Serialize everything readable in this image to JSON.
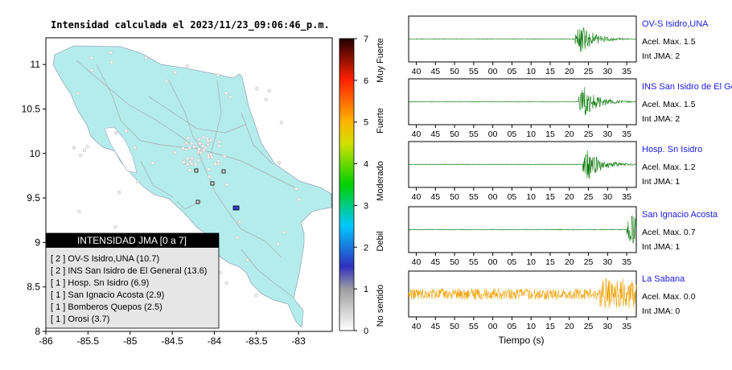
{
  "map": {
    "title": "Intensidad calculada el 2023/11/23_09:06:46_p.m.",
    "x_ticks": [
      "-86",
      "-85.5",
      "-85",
      "-84.5",
      "-84",
      "-83.5",
      "-83"
    ],
    "y_ticks": [
      "11",
      "10.5",
      "10",
      "9.5",
      "9",
      "8.5",
      "8"
    ],
    "colorbar": {
      "ticks": [
        "0",
        "1",
        "2",
        "3",
        "4",
        "5",
        "6",
        "7"
      ],
      "labels": [
        "No sentido",
        "Debil",
        "Moderado",
        "Fuerte",
        "Muy Fuerte"
      ]
    },
    "legend": {
      "header": "INTENSIDAD JMA [0 a 7]",
      "items": [
        "[ 2 ]  OV-S Isidro,UNA (10.7)",
        "[ 2 ]  INS San Isidro de El General (13.6)",
        "[ 1 ]  Hosp. Sn Isidro (6.9)",
        "[ 1 ]  San Ignacio Acosta (2.9)",
        "[ 1 ]  Bomberos Quepos (2.5)",
        "[ 1 ]  Orosi (3.7)"
      ]
    }
  },
  "traces": {
    "xlabel": "Tiempo (s)",
    "panels": [
      {
        "station": "OV-S Isidro,UNA",
        "accel": "Acel. Max. 1.5",
        "int": "Int JMA: 2",
        "ticks": [
          "40",
          "45",
          "50",
          "55",
          "00",
          "05",
          "10",
          "15",
          "20",
          "25",
          "30",
          "35"
        ],
        "onset": 21.5,
        "color": "#0b7a0b"
      },
      {
        "station": "INS San Isidro de El Ge",
        "accel": "Acel. Max. 1.5",
        "int": "Int JMA: 2",
        "ticks": [
          "40",
          "45",
          "50",
          "55",
          "00",
          "05",
          "10",
          "15",
          "20",
          "25",
          "30",
          "35"
        ],
        "onset": 22.5,
        "color": "#0b7a0b"
      },
      {
        "station": "Hosp. Sn Isidro",
        "accel": "Acel. Max. 1.2",
        "int": "Int JMA: 1",
        "ticks": [
          "40",
          "45",
          "50",
          "55",
          "00",
          "05",
          "10",
          "15",
          "20",
          "25",
          "30",
          "35"
        ],
        "onset": 23.5,
        "color": "#0b7a0b"
      },
      {
        "station": "San Ignacio Acosta",
        "accel": "Acel. Max. 0.7",
        "int": "Int JMA: 1",
        "ticks": [
          "40",
          "45",
          "50",
          "55",
          "00",
          "05",
          "10",
          "15",
          "20",
          "25",
          "30",
          "35"
        ],
        "onset": 35.0,
        "color": "#0b7a0b"
      },
      {
        "station": "La Sabana",
        "accel": "Acel. Max. 0.0",
        "int": "Int JMA: 0",
        "ticks": [
          "40",
          "45",
          "50",
          "55",
          "00",
          "05",
          "10",
          "15",
          "20",
          "25",
          "30",
          "35"
        ],
        "onset": -1,
        "color": "#f0a000"
      }
    ]
  },
  "chart_data": [
    {
      "type": "scatter",
      "title": "Intensidad calculada el 2023/11/23_09:06:46_p.m.",
      "xlim": [
        -86,
        -82.6
      ],
      "ylim": [
        8,
        11.3
      ],
      "stations": [
        {
          "name": "OV-S Isidro,UNA",
          "lon": -83.7,
          "lat": 9.37,
          "jma": 2
        },
        {
          "name": "INS San Isidro de El General",
          "lon": -83.7,
          "lat": 9.38,
          "jma": 2
        },
        {
          "name": "Hosp. Sn Isidro",
          "lon": -83.95,
          "lat": 9.65,
          "jma": 1
        },
        {
          "name": "San Ignacio Acosta",
          "lon": -84.15,
          "lat": 9.8,
          "jma": 1
        },
        {
          "name": "Bomberos Quepos",
          "lon": -84.14,
          "lat": 9.43,
          "jma": 1
        },
        {
          "name": "Orosi",
          "lon": -83.85,
          "lat": 9.8,
          "jma": 1
        }
      ],
      "colorbar": {
        "range": [
          0,
          7
        ],
        "labels": [
          "No sentido",
          "Debil",
          "Moderado",
          "Fuerte",
          "Muy Fuerte"
        ]
      }
    },
    {
      "type": "line",
      "xlabel": "Tiempo (s)",
      "series": [
        {
          "name": "OV-S Isidro,UNA",
          "peak_accel": 1.5,
          "jma": 2
        },
        {
          "name": "INS San Isidro de El Ge",
          "peak_accel": 1.5,
          "jma": 2
        },
        {
          "name": "Hosp. Sn Isidro",
          "peak_accel": 1.2,
          "jma": 1
        },
        {
          "name": "San Ignacio Acosta",
          "peak_accel": 0.7,
          "jma": 1
        },
        {
          "name": "La Sabana",
          "peak_accel": 0.0,
          "jma": 0
        }
      ]
    }
  ]
}
